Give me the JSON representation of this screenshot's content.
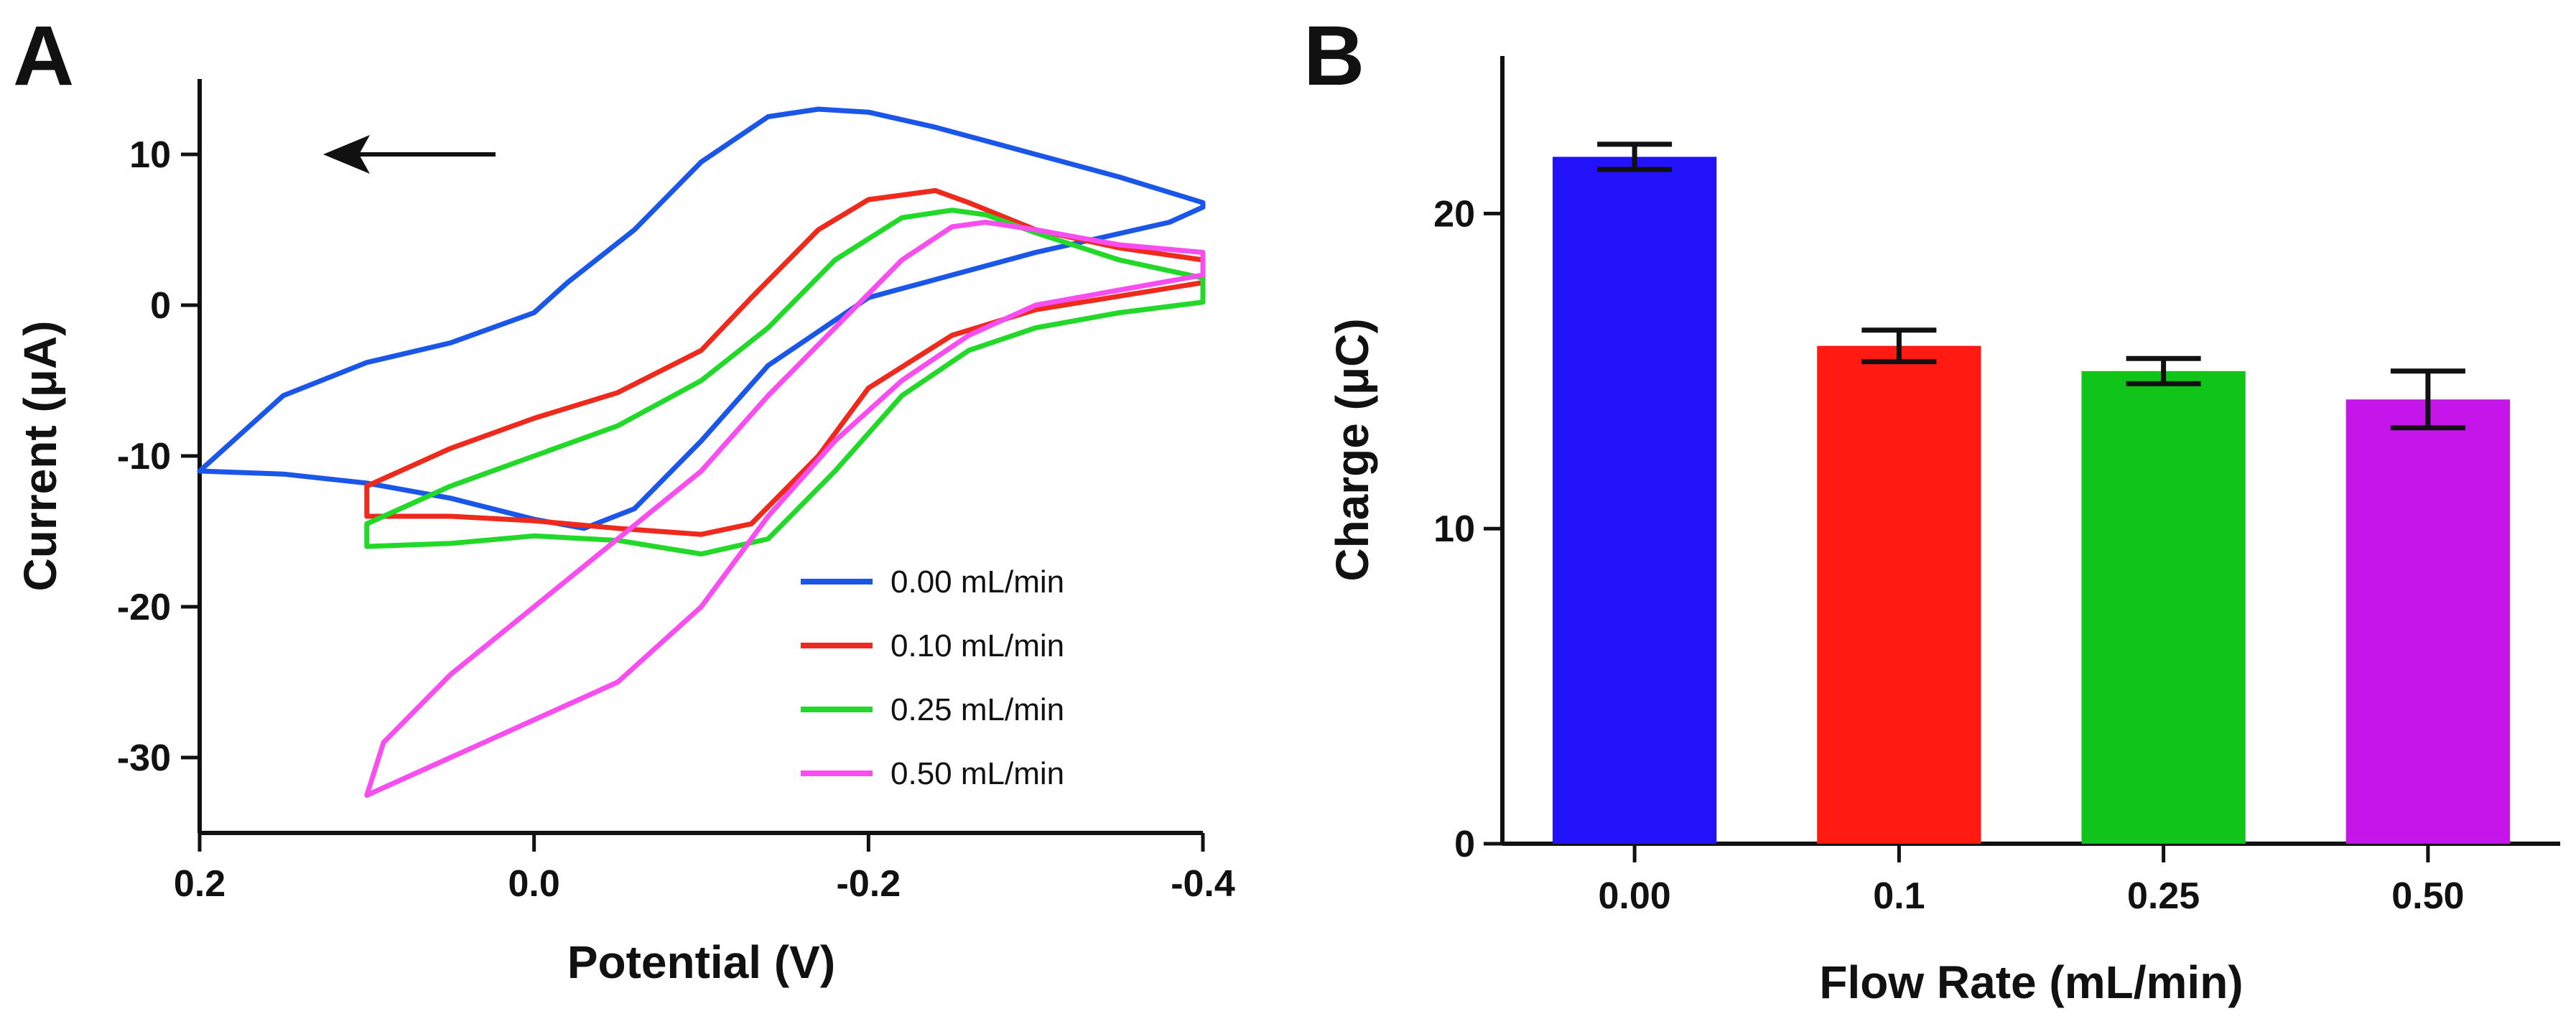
{
  "chart_data": [
    {
      "panel": "A",
      "type": "line",
      "xlabel": "Potential (V)",
      "ylabel": "Current (μA)",
      "xlim": [
        0.2,
        -0.4
      ],
      "ylim": [
        -35,
        15
      ],
      "x_ticks": [
        0.2,
        0.0,
        -0.2,
        -0.4
      ],
      "x_tick_labels": [
        "0.2",
        "0.0",
        "-0.2",
        "-0.4"
      ],
      "y_ticks": [
        10,
        0,
        -10,
        -20,
        -30
      ],
      "y_tick_labels": [
        "10",
        "0",
        "-10",
        "-20",
        "-30"
      ],
      "legend_position": "bottom-right",
      "annotation": "arrow pointing toward positive potential (scan direction)",
      "series": [
        {
          "name": "0.00 mL/min",
          "color": "#1a56e8",
          "points": [
            [
              0.2,
              -11
            ],
            [
              0.15,
              -11.2
            ],
            [
              0.1,
              -11.8
            ],
            [
              0.05,
              -12.8
            ],
            [
              0.0,
              -14.2
            ],
            [
              -0.03,
              -14.8
            ],
            [
              -0.06,
              -13.5
            ],
            [
              -0.1,
              -9
            ],
            [
              -0.14,
              -4
            ],
            [
              -0.2,
              0.5
            ],
            [
              -0.3,
              3.5
            ],
            [
              -0.38,
              5.5
            ],
            [
              -0.4,
              6.5
            ],
            [
              -0.4,
              6.8
            ],
            [
              -0.35,
              8.5
            ],
            [
              -0.3,
              10
            ],
            [
              -0.24,
              11.8
            ],
            [
              -0.2,
              12.8
            ],
            [
              -0.17,
              13
            ],
            [
              -0.14,
              12.5
            ],
            [
              -0.1,
              9.5
            ],
            [
              -0.06,
              5
            ],
            [
              -0.02,
              1.5
            ],
            [
              0.0,
              -0.5
            ],
            [
              0.05,
              -2.5
            ],
            [
              0.1,
              -3.8
            ],
            [
              0.15,
              -6
            ],
            [
              0.2,
              -11
            ]
          ]
        },
        {
          "name": "0.10 mL/min",
          "color": "#ee2a1c",
          "points": [
            [
              0.1,
              -14
            ],
            [
              0.05,
              -14
            ],
            [
              0.0,
              -14.3
            ],
            [
              -0.05,
              -14.8
            ],
            [
              -0.1,
              -15.2
            ],
            [
              -0.13,
              -14.5
            ],
            [
              -0.17,
              -10
            ],
            [
              -0.2,
              -5.5
            ],
            [
              -0.25,
              -2
            ],
            [
              -0.3,
              -0.3
            ],
            [
              -0.35,
              0.6
            ],
            [
              -0.4,
              1.5
            ],
            [
              -0.4,
              3
            ],
            [
              -0.35,
              3.8
            ],
            [
              -0.3,
              5
            ],
            [
              -0.26,
              6.8
            ],
            [
              -0.24,
              7.6
            ],
            [
              -0.2,
              7
            ],
            [
              -0.17,
              5
            ],
            [
              -0.13,
              0.5
            ],
            [
              -0.1,
              -3
            ],
            [
              -0.05,
              -5.8
            ],
            [
              0.0,
              -7.5
            ],
            [
              0.05,
              -9.5
            ],
            [
              0.1,
              -12
            ],
            [
              0.1,
              -14
            ]
          ]
        },
        {
          "name": "0.25 mL/min",
          "color": "#22d92a",
          "points": [
            [
              0.1,
              -16
            ],
            [
              0.05,
              -15.8
            ],
            [
              0.0,
              -15.3
            ],
            [
              -0.05,
              -15.6
            ],
            [
              -0.1,
              -16.5
            ],
            [
              -0.14,
              -15.5
            ],
            [
              -0.18,
              -11
            ],
            [
              -0.22,
              -6
            ],
            [
              -0.26,
              -3
            ],
            [
              -0.3,
              -1.5
            ],
            [
              -0.35,
              -0.5
            ],
            [
              -0.4,
              0.2
            ],
            [
              -0.4,
              1.8
            ],
            [
              -0.35,
              3
            ],
            [
              -0.3,
              4.8
            ],
            [
              -0.27,
              6
            ],
            [
              -0.25,
              6.3
            ],
            [
              -0.22,
              5.8
            ],
            [
              -0.18,
              3
            ],
            [
              -0.14,
              -1.5
            ],
            [
              -0.1,
              -5
            ],
            [
              -0.05,
              -8
            ],
            [
              0.0,
              -10
            ],
            [
              0.05,
              -12
            ],
            [
              0.1,
              -14.5
            ],
            [
              0.1,
              -16
            ]
          ]
        },
        {
          "name": "0.50 mL/min",
          "color": "#f84ef0",
          "points": [
            [
              0.1,
              -32.5
            ],
            [
              0.05,
              -30
            ],
            [
              0.0,
              -27.5
            ],
            [
              -0.05,
              -25
            ],
            [
              -0.1,
              -20
            ],
            [
              -0.14,
              -14
            ],
            [
              -0.18,
              -9
            ],
            [
              -0.22,
              -5
            ],
            [
              -0.26,
              -2
            ],
            [
              -0.3,
              0
            ],
            [
              -0.35,
              1
            ],
            [
              -0.4,
              2
            ],
            [
              -0.4,
              3.5
            ],
            [
              -0.35,
              4
            ],
            [
              -0.3,
              5
            ],
            [
              -0.27,
              5.5
            ],
            [
              -0.25,
              5.2
            ],
            [
              -0.22,
              3
            ],
            [
              -0.18,
              -1.5
            ],
            [
              -0.14,
              -6
            ],
            [
              -0.1,
              -11
            ],
            [
              -0.05,
              -15.5
            ],
            [
              0.0,
              -20
            ],
            [
              0.05,
              -24.5
            ],
            [
              0.09,
              -29
            ],
            [
              0.1,
              -32.5
            ]
          ]
        }
      ]
    },
    {
      "panel": "B",
      "type": "bar",
      "xlabel": "Flow Rate (mL/min)",
      "ylabel": "Charge (μC)",
      "ylim": [
        0,
        25
      ],
      "y_ticks": [
        0,
        10,
        20
      ],
      "y_tick_labels": [
        "0",
        "10",
        "20"
      ],
      "categories": [
        "0.00",
        "0.1",
        "0.25",
        "0.50"
      ],
      "values": [
        21.8,
        15.8,
        15.0,
        14.1
      ],
      "errors": [
        0.4,
        0.5,
        0.4,
        0.9
      ],
      "colors": [
        "#2112f8",
        "#ff1a12",
        "#10c41a",
        "#c515e8"
      ]
    }
  ],
  "panels": {
    "a_label": "A",
    "b_label": "B"
  }
}
